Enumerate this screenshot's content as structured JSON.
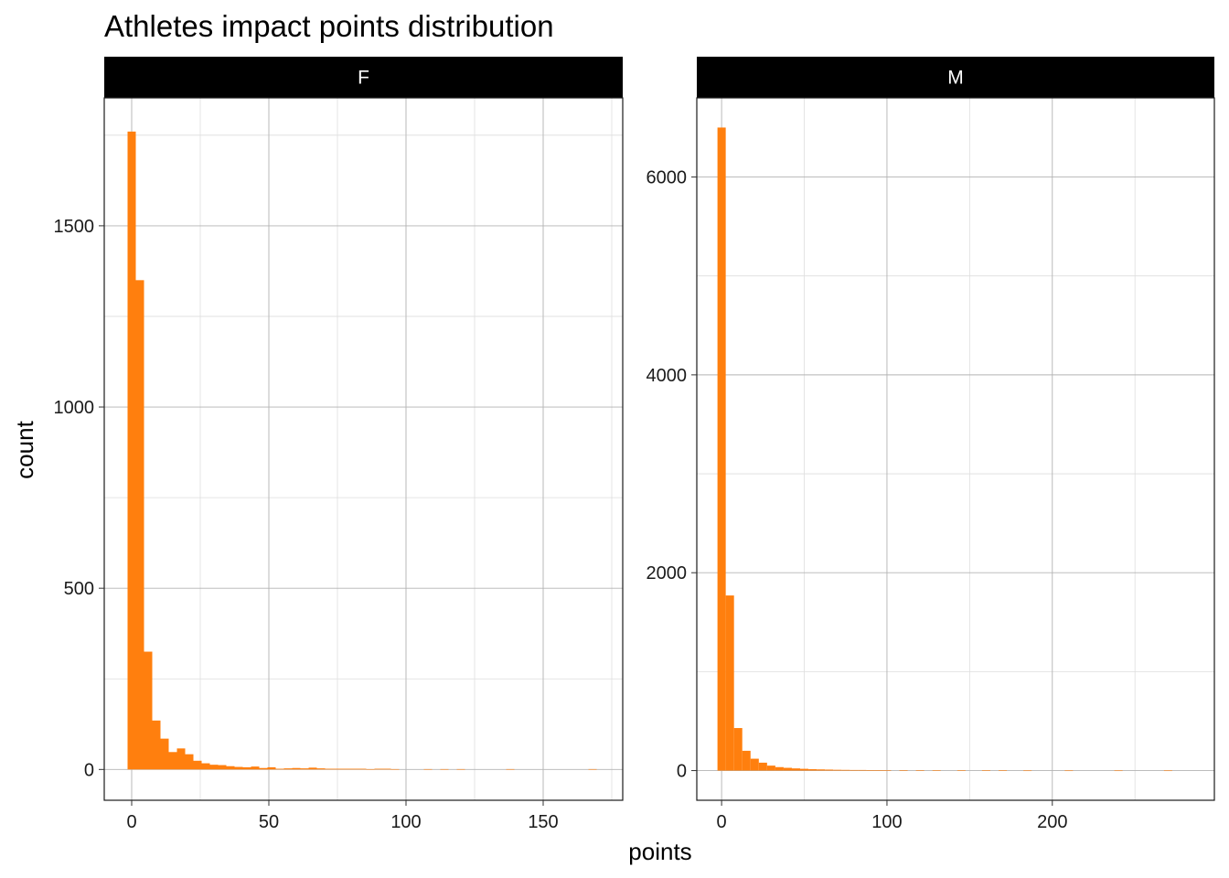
{
  "chart_data": {
    "type": "bar",
    "title": "Athletes impact points distribution",
    "xlabel": "points",
    "ylabel": "count",
    "bar_color": "#FF7F0E",
    "strip_color": "#000000",
    "grid": true,
    "panels": [
      {
        "label": "F",
        "xlim": [
          -10,
          179
        ],
        "ylim": [
          -85,
          1853
        ],
        "x_ticks": [
          0,
          50,
          100,
          150
        ],
        "y_ticks": [
          0,
          500,
          1000,
          1500
        ],
        "bin_width": 3,
        "bins": [
          [
            0,
            1760
          ],
          [
            3,
            1350
          ],
          [
            6,
            325
          ],
          [
            9,
            135
          ],
          [
            12,
            85
          ],
          [
            15,
            48
          ],
          [
            18,
            58
          ],
          [
            21,
            42
          ],
          [
            24,
            24
          ],
          [
            27,
            17
          ],
          [
            30,
            13
          ],
          [
            33,
            12
          ],
          [
            36,
            9
          ],
          [
            39,
            7
          ],
          [
            42,
            6
          ],
          [
            45,
            8
          ],
          [
            48,
            4
          ],
          [
            51,
            6
          ],
          [
            54,
            2
          ],
          [
            57,
            3
          ],
          [
            60,
            4
          ],
          [
            63,
            3
          ],
          [
            66,
            5
          ],
          [
            69,
            3
          ],
          [
            72,
            2
          ],
          [
            75,
            2
          ],
          [
            78,
            2
          ],
          [
            81,
            2
          ],
          [
            84,
            2
          ],
          [
            87,
            1
          ],
          [
            90,
            2
          ],
          [
            93,
            2
          ],
          [
            96,
            1
          ],
          [
            108,
            1
          ],
          [
            114,
            1
          ],
          [
            120,
            1
          ],
          [
            138,
            1
          ],
          [
            168,
            1
          ]
        ]
      },
      {
        "label": "M",
        "xlim": [
          -15,
          298
        ],
        "ylim": [
          -300,
          6800
        ],
        "x_ticks": [
          0,
          100,
          200
        ],
        "y_ticks": [
          0,
          2000,
          4000,
          6000
        ],
        "bin_width": 5,
        "bins": [
          [
            0,
            6500
          ],
          [
            5,
            1770
          ],
          [
            10,
            430
          ],
          [
            15,
            200
          ],
          [
            20,
            120
          ],
          [
            25,
            80
          ],
          [
            30,
            50
          ],
          [
            35,
            35
          ],
          [
            40,
            28
          ],
          [
            45,
            22
          ],
          [
            50,
            18
          ],
          [
            55,
            14
          ],
          [
            60,
            12
          ],
          [
            65,
            10
          ],
          [
            70,
            8
          ],
          [
            75,
            7
          ],
          [
            80,
            6
          ],
          [
            85,
            6
          ],
          [
            90,
            5
          ],
          [
            95,
            5
          ],
          [
            100,
            4
          ],
          [
            110,
            3
          ],
          [
            120,
            3
          ],
          [
            130,
            2
          ],
          [
            145,
            2
          ],
          [
            160,
            2
          ],
          [
            170,
            2
          ],
          [
            185,
            1
          ],
          [
            210,
            1
          ],
          [
            240,
            1
          ],
          [
            270,
            1
          ]
        ]
      }
    ]
  }
}
